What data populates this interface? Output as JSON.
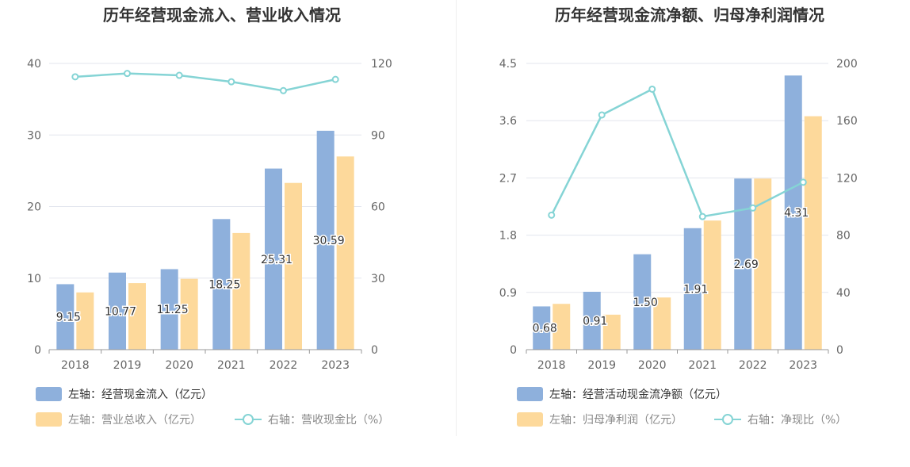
{
  "colors": {
    "bar1": "#8eb0dc",
    "bar2": "#fdd99b",
    "line": "#85d4d5",
    "grid": "#e3e6ee",
    "axis": "#999999"
  },
  "chart_data": [
    {
      "type": "bar",
      "title": "历年经营现金流入、营业收入情况",
      "categories": [
        "2018",
        "2019",
        "2020",
        "2021",
        "2022",
        "2023"
      ],
      "y_left": {
        "ticks": [
          "0",
          "10",
          "20",
          "30",
          "40"
        ],
        "lim": [
          0,
          40
        ]
      },
      "y_right": {
        "ticks": [
          "0",
          "30",
          "60",
          "90",
          "120"
        ],
        "lim": [
          0,
          120
        ]
      },
      "series": [
        {
          "name": "左轴：经营现金流入（亿元）",
          "axis": "left",
          "type": "bar",
          "values": [
            9.15,
            10.77,
            11.25,
            18.25,
            25.31,
            30.59
          ],
          "labels": [
            "9.15",
            "10.77",
            "11.25",
            "18.25",
            "25.31",
            "30.59"
          ]
        },
        {
          "name": "左轴：营业总收入（亿元）",
          "axis": "left",
          "type": "bar",
          "values": [
            8.0,
            9.3,
            9.9,
            16.3,
            23.3,
            27.0
          ]
        },
        {
          "name": "右轴：营收现金比（%）",
          "axis": "right",
          "type": "line",
          "values": [
            114.4,
            115.8,
            115.0,
            112.3,
            108.6,
            113.3
          ]
        }
      ],
      "legend": [
        {
          "text": "左轴：经营现金流入（亿元）"
        },
        {
          "text": "左轴：营业总收入（亿元）"
        },
        {
          "text": "右轴：营收现金比（%）"
        }
      ]
    },
    {
      "type": "bar",
      "title": "历年经营现金流净额、归母净利润情况",
      "categories": [
        "2018",
        "2019",
        "2020",
        "2021",
        "2022",
        "2023"
      ],
      "y_left": {
        "ticks": [
          "0",
          "0.9",
          "1.8",
          "2.7",
          "3.6",
          "4.5"
        ],
        "lim": [
          0,
          4.5
        ]
      },
      "y_right": {
        "ticks": [
          "0",
          "40",
          "80",
          "120",
          "160",
          "200"
        ],
        "lim": [
          0,
          200
        ]
      },
      "series": [
        {
          "name": "左轴：经营活动现金流净额（亿元）",
          "axis": "left",
          "type": "bar",
          "values": [
            0.68,
            0.91,
            1.5,
            1.91,
            2.69,
            4.31
          ],
          "labels": [
            "0.68",
            "0.91",
            "1.50",
            "1.91",
            "2.69",
            "4.31"
          ]
        },
        {
          "name": "左轴：归母净利润（亿元）",
          "axis": "left",
          "type": "bar",
          "values": [
            0.72,
            0.55,
            0.82,
            2.03,
            2.69,
            3.67
          ]
        },
        {
          "name": "右轴：净现比（%）",
          "axis": "right",
          "type": "line",
          "values": [
            94,
            164,
            182,
            93,
            99,
            117
          ]
        }
      ],
      "legend": [
        {
          "text": "左轴：经营活动现金流净额（亿元）"
        },
        {
          "text": "左轴：归母净利润（亿元）"
        },
        {
          "text": "右轴：净现比（%）"
        }
      ]
    }
  ]
}
